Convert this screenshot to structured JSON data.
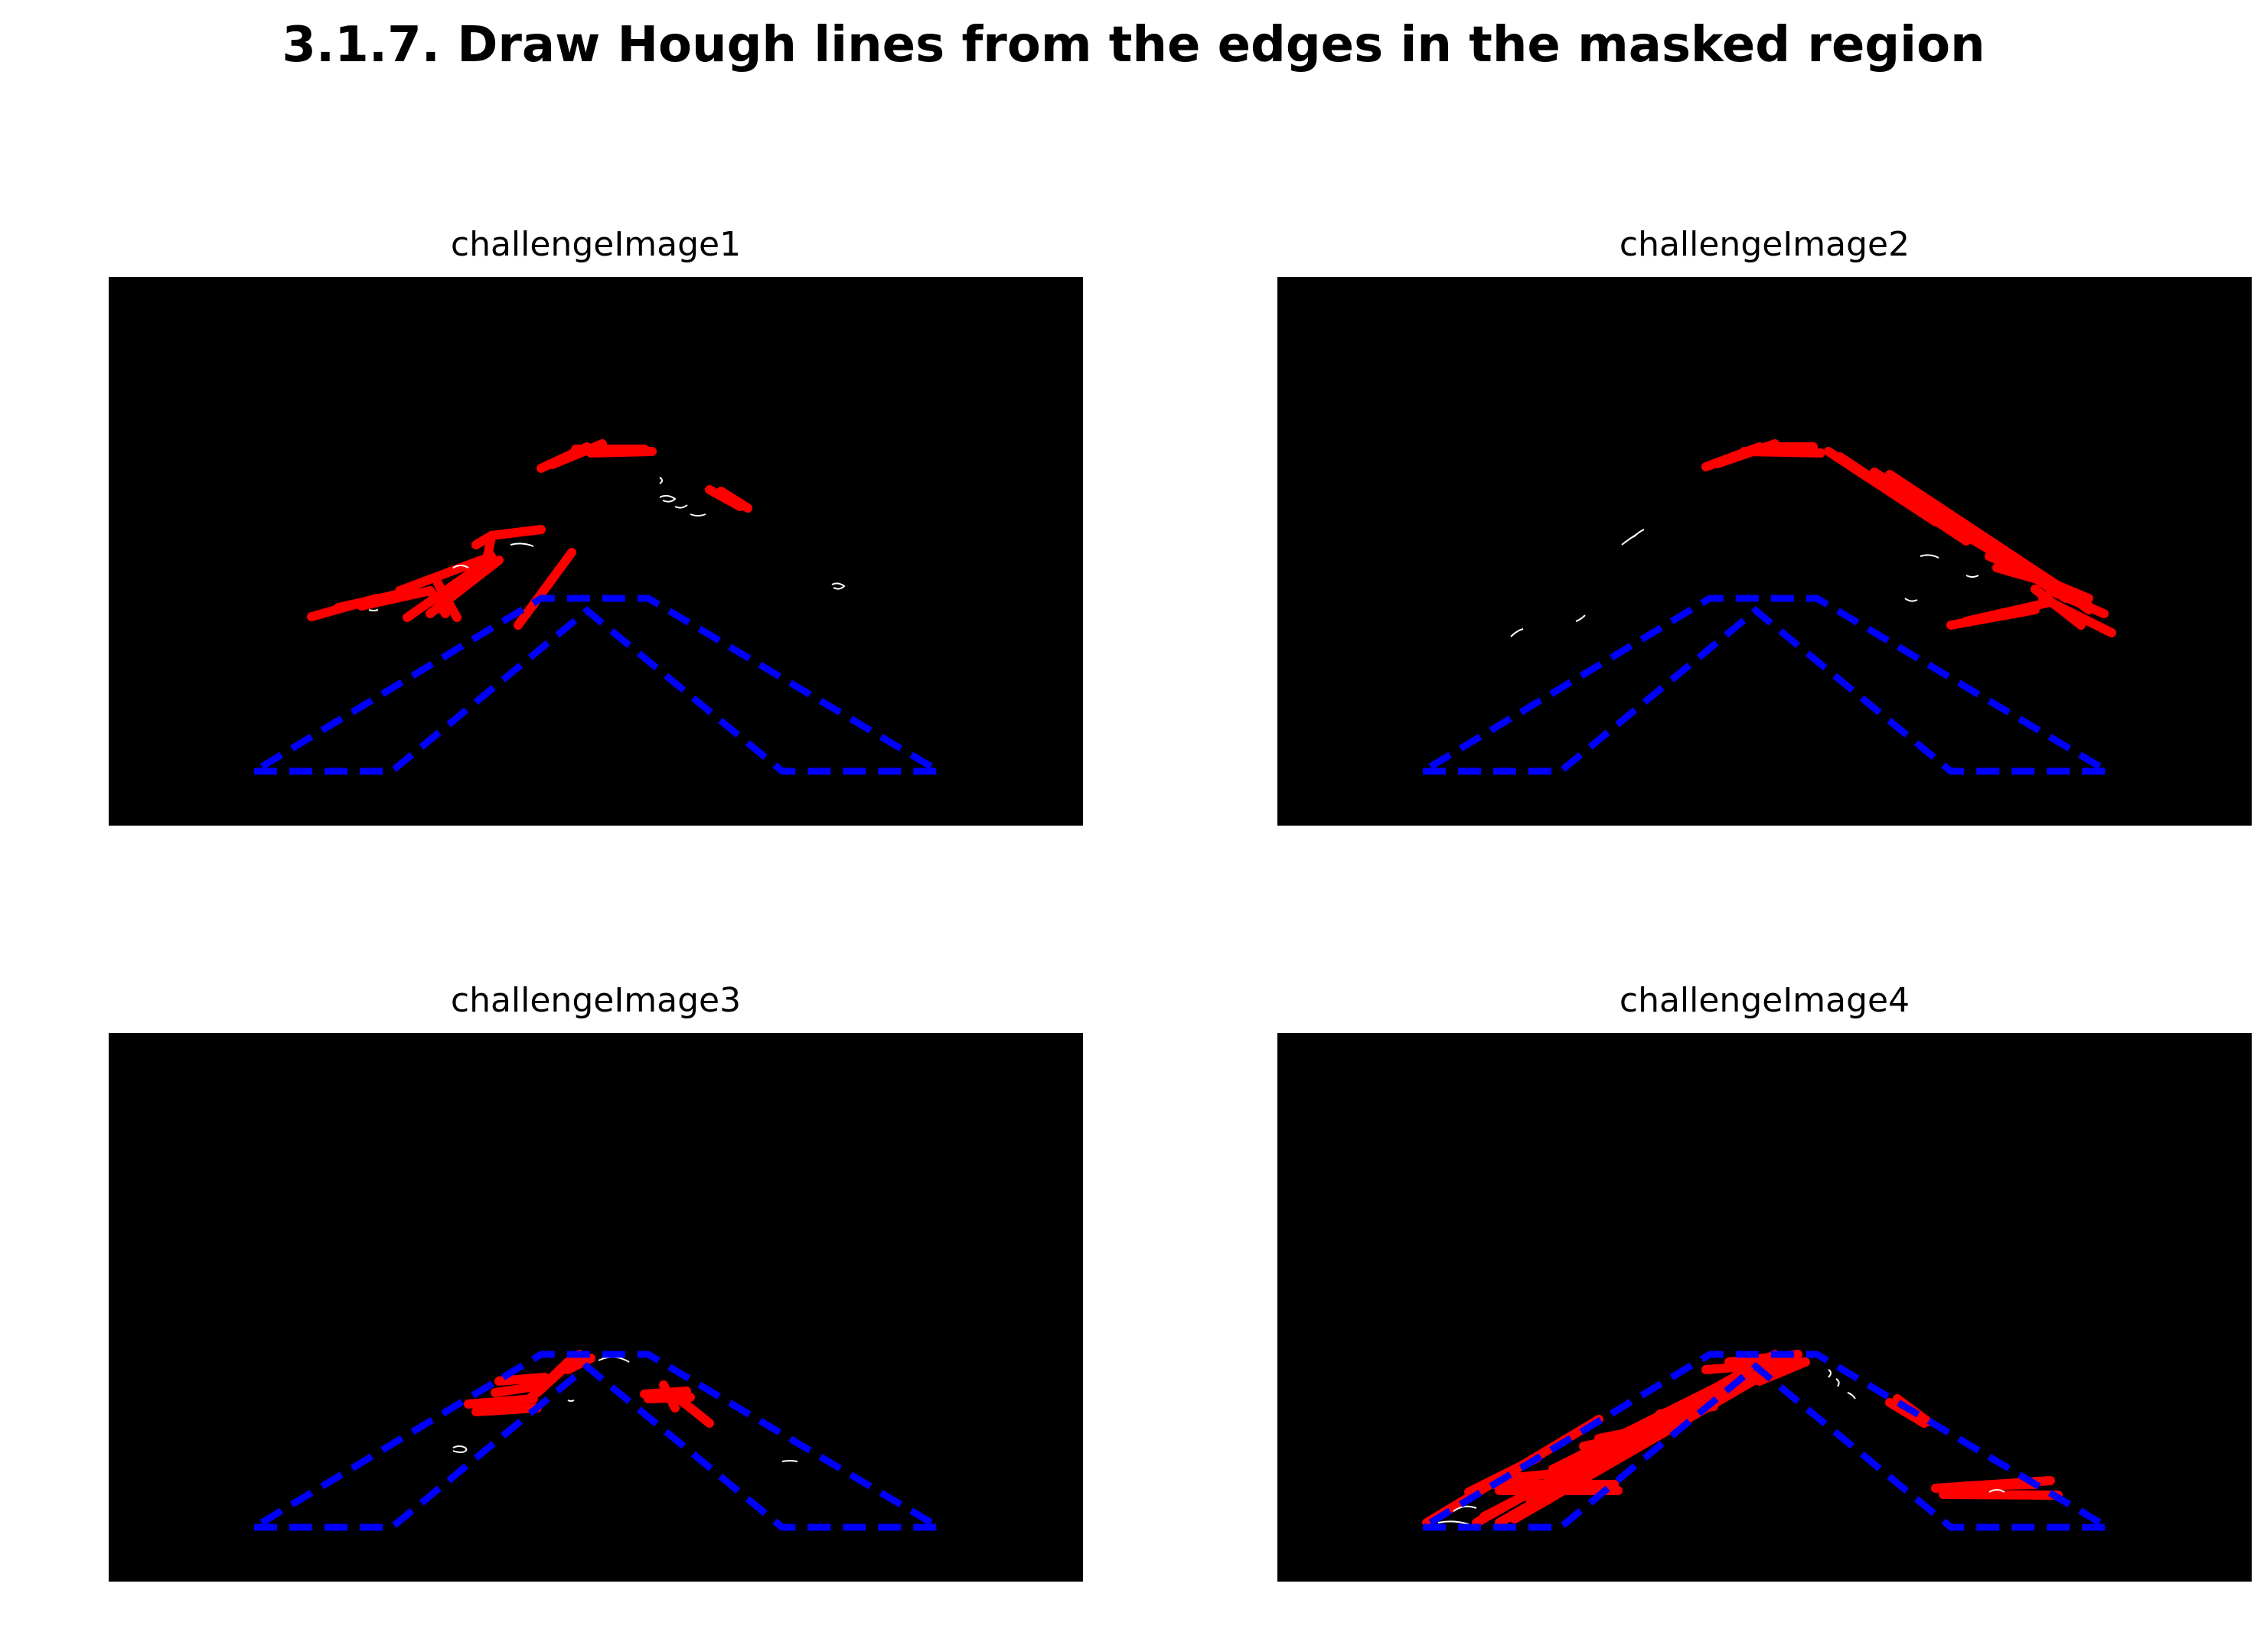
{
  "figure": {
    "title": "3.1.7. Draw Hough lines from the edges in the masked region"
  },
  "panels": [
    {
      "title": "challengeImage1",
      "has_left_hough_lines": true,
      "has_right_hough_lines": true
    },
    {
      "title": "challengeImage2",
      "has_left_hough_lines": true,
      "has_right_hough_lines": true
    },
    {
      "title": "challengeImage3",
      "has_left_hough_lines": true,
      "has_right_hough_lines": true
    },
    {
      "title": "challengeImage4",
      "has_left_hough_lines": true,
      "has_right_hough_lines": true
    }
  ],
  "colors": {
    "background": "#000000",
    "mask_outline": "#0000ff",
    "hough_lines": "#ff0000",
    "edges": "#ffffff"
  }
}
